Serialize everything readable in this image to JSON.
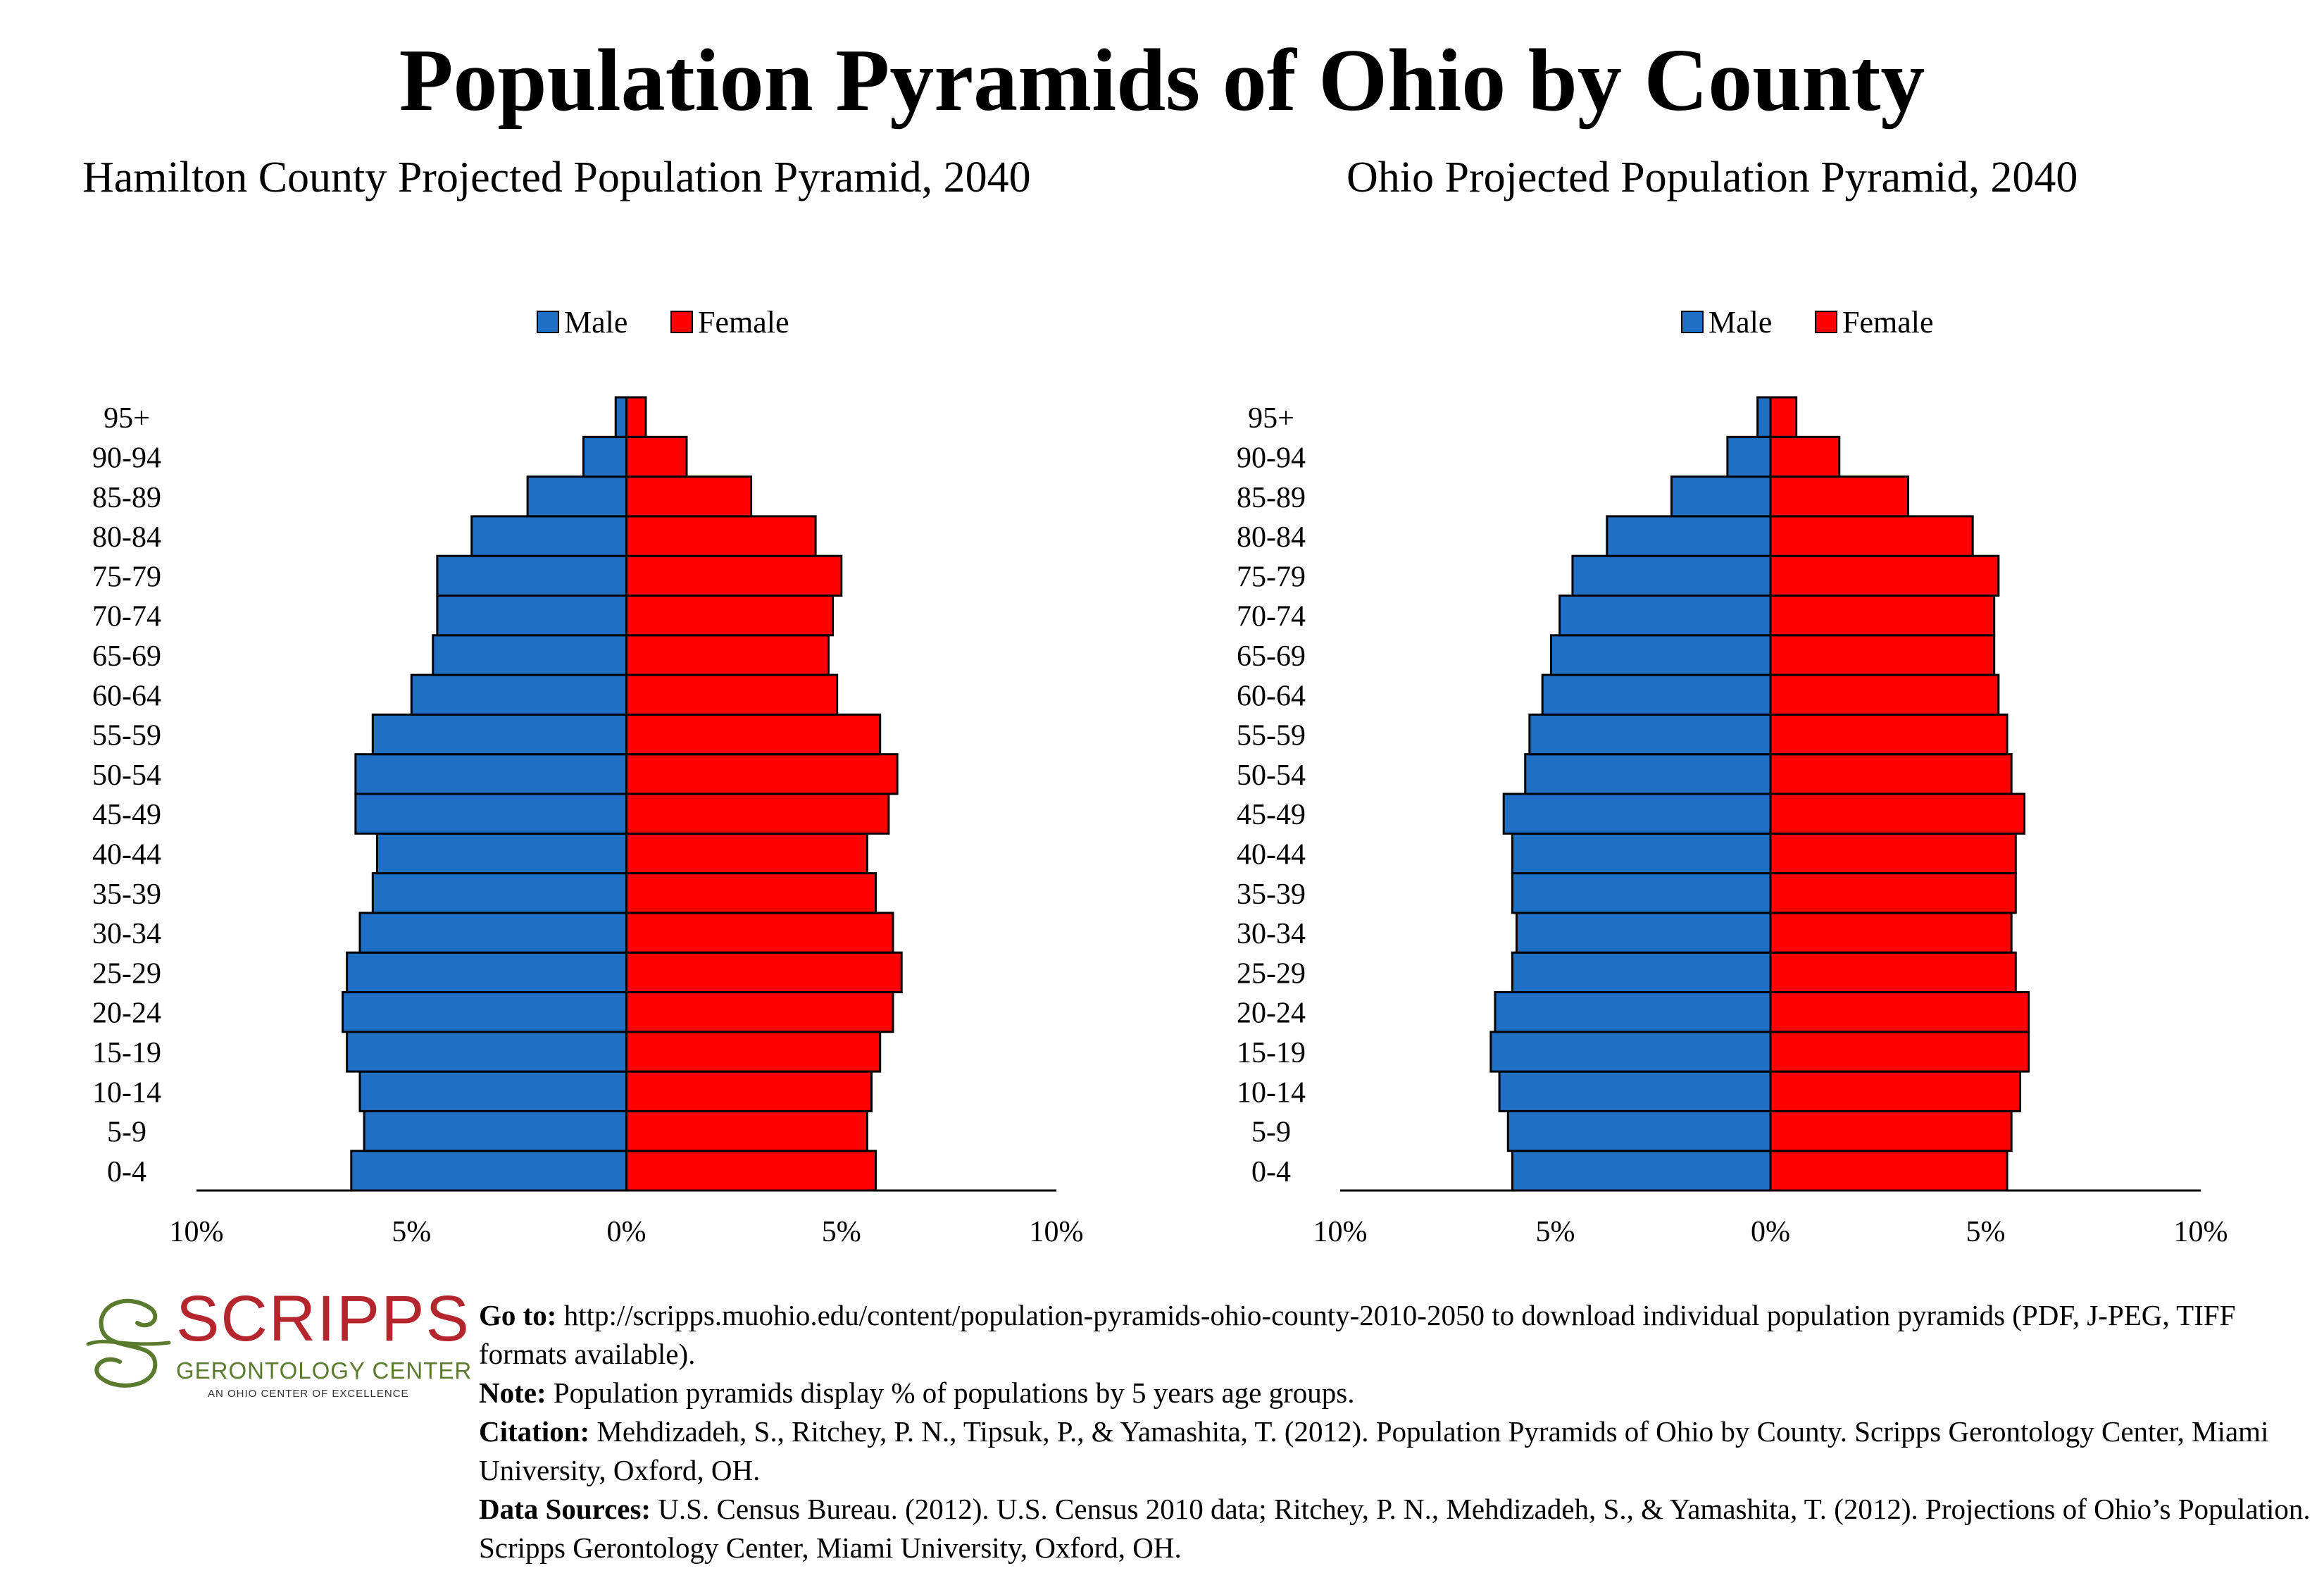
{
  "title": "Population Pyramids of Ohio by County",
  "logo": {
    "word": "SCRIPPS",
    "subtitle": "GERONTOLOGY CENTER",
    "tagline": "AN OHIO CENTER OF EXCELLENCE",
    "colors": {
      "word": "#b5252d",
      "swirl": "#5a7a2e"
    }
  },
  "footer": {
    "goto_label": "Go to:",
    "goto_text": "http://scripps.muohio.edu/content/population-pyramids-ohio-county-2010-2050 to download individual population pyramids (PDF, J-PEG, TIFF formats available).",
    "note_label": "Note:",
    "note_text": "Population pyramids display % of populations by 5 years age groups.",
    "citation_label": "Citation:",
    "citation_text": "Mehdizadeh, S., Ritchey, P. N., Tipsuk, P., & Yamashita, T. (2012). Population Pyramids of Ohio by County. Scripps Gerontology Center, Miami University, Oxford, OH.",
    "sources_label": "Data Sources:",
    "sources_text": "U.S. Census Bureau. (2012). U.S. Census 2010 data; Ritchey, P. N., Mehdizadeh, S., & Yamashita, T. (2012). Projections of Ohio’s Population. Scripps Gerontology Center, Miami University, Oxford, OH."
  },
  "colors": {
    "male": "#1f6fc5",
    "female": "#ff0000"
  },
  "chart_data": [
    {
      "type": "bar",
      "title": "Hamilton County Projected Population Pyramid, 2040",
      "orientation": "horizontal-pyramid",
      "categories": [
        "0-4",
        "5-9",
        "10-14",
        "15-19",
        "20-24",
        "25-29",
        "30-34",
        "35-39",
        "40-44",
        "45-49",
        "50-54",
        "55-59",
        "60-64",
        "65-69",
        "70-74",
        "75-79",
        "80-84",
        "85-89",
        "90-94",
        "95+"
      ],
      "series": [
        {
          "name": "Male",
          "values": [
            6.4,
            6.1,
            6.2,
            6.5,
            6.6,
            6.5,
            6.2,
            5.9,
            5.8,
            6.3,
            6.3,
            5.9,
            5.0,
            4.5,
            4.4,
            4.4,
            3.6,
            2.3,
            1.0,
            0.25
          ]
        },
        {
          "name": "Female",
          "values": [
            5.8,
            5.6,
            5.7,
            5.9,
            6.2,
            6.4,
            6.2,
            5.8,
            5.6,
            6.1,
            6.3,
            5.9,
            4.9,
            4.7,
            4.8,
            5.0,
            4.4,
            2.9,
            1.4,
            0.45
          ]
        }
      ],
      "xlim": [
        -10,
        10
      ],
      "xticks": [
        "10%",
        "5%",
        "0%",
        "5%",
        "10%"
      ],
      "legend": "top-center",
      "grid": false
    },
    {
      "type": "bar",
      "title": "Ohio Projected Population Pyramid, 2040",
      "orientation": "horizontal-pyramid",
      "categories": [
        "0-4",
        "5-9",
        "10-14",
        "15-19",
        "20-24",
        "25-29",
        "30-34",
        "35-39",
        "40-44",
        "45-49",
        "50-54",
        "55-59",
        "60-64",
        "65-69",
        "70-74",
        "75-79",
        "80-84",
        "85-89",
        "90-94",
        "95+"
      ],
      "series": [
        {
          "name": "Male",
          "values": [
            6.0,
            6.1,
            6.3,
            6.5,
            6.4,
            6.0,
            5.9,
            6.0,
            6.0,
            6.2,
            5.7,
            5.6,
            5.3,
            5.1,
            4.9,
            4.6,
            3.8,
            2.3,
            1.0,
            0.3
          ]
        },
        {
          "name": "Female",
          "values": [
            5.5,
            5.6,
            5.8,
            6.0,
            6.0,
            5.7,
            5.6,
            5.7,
            5.7,
            5.9,
            5.6,
            5.5,
            5.3,
            5.2,
            5.2,
            5.3,
            4.7,
            3.2,
            1.6,
            0.6
          ]
        }
      ],
      "xlim": [
        -10,
        10
      ],
      "xticks": [
        "10%",
        "5%",
        "0%",
        "5%",
        "10%"
      ],
      "legend": "top-center",
      "grid": false
    }
  ]
}
